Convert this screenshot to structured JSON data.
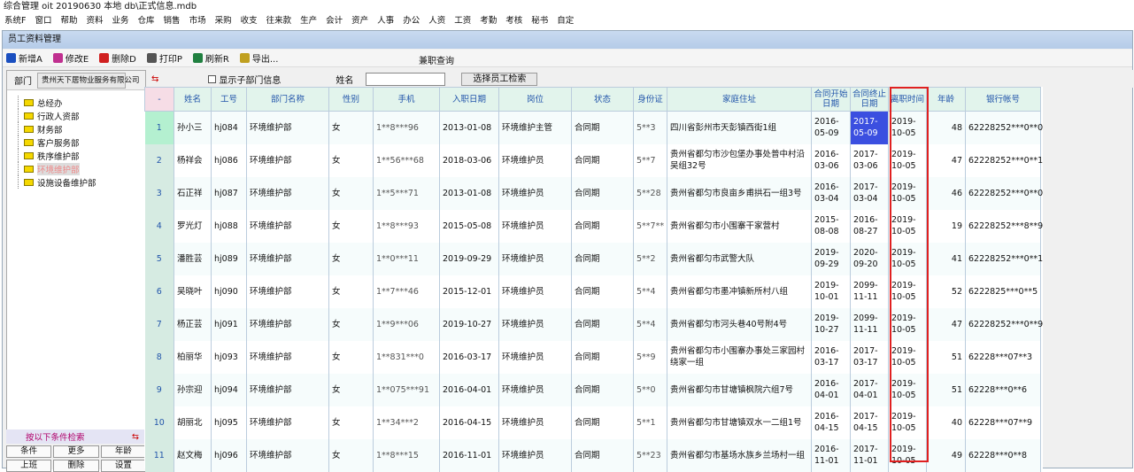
{
  "app": {
    "title": "综合管理 oit 20190630   本地 db\\正式信息.mdb",
    "menu": [
      "系统F",
      "窗口",
      "帮助",
      "资料",
      "业务",
      "仓库",
      "销售",
      "市场",
      "采购",
      "收支",
      "往来款",
      "生产",
      "会计",
      "资产",
      "人事",
      "办公",
      "人资",
      "工资",
      "考勤",
      "考核",
      "秘书",
      "自定"
    ]
  },
  "window": {
    "title": "员工资料管理",
    "toolbar": [
      {
        "label": "新增A",
        "icon": "add-icon",
        "color": "#1a4fc0"
      },
      {
        "label": "修改E",
        "icon": "edit-icon",
        "color": "#c03090"
      },
      {
        "label": "删除D",
        "icon": "delete-icon",
        "color": "#d02020"
      },
      {
        "label": "打印P",
        "icon": "print-icon",
        "color": "#555"
      },
      {
        "label": "刷新R",
        "icon": "refresh-icon",
        "color": "#208040"
      },
      {
        "label": "导出...",
        "icon": "export-icon",
        "color": "#c0a020"
      }
    ],
    "extra": "兼职查询"
  },
  "left": {
    "dept_label": "部门",
    "dept_value": "贵州天下居物业服务有限公司",
    "tree": [
      "总经办",
      "行政人资部",
      "财务部",
      "客户服务部",
      "秩序维护部",
      "环境维护部",
      "设施设备维护部"
    ],
    "selected": 5,
    "search_title": "按以下条件检索",
    "buttons": [
      "条件",
      "更多",
      "年龄",
      "上班",
      "删除",
      "设置"
    ]
  },
  "filter": {
    "checkbox": "显示子部门信息",
    "name_label": "姓名",
    "name_value": "",
    "search_btn": "选择员工检索"
  },
  "grid": {
    "headers": [
      "-",
      "姓名",
      "工号",
      "部门名称",
      "性别",
      "手机",
      "入职日期",
      "岗位",
      "状态",
      "身份证",
      "家庭住址",
      "合同开始日期",
      "合同终止日期",
      "离职时间",
      "年龄",
      "银行帐号"
    ],
    "rows": [
      [
        "1",
        "孙小三",
        "hj084",
        "环境维护部",
        "女",
        "1**8***96",
        "2013-01-08",
        "环境维护主管",
        "合同期",
        "5**3",
        "四川省彭州市天彭镇西街1组",
        "2016-05-09",
        "2017-05-09",
        "2019-10-05",
        "48",
        "62228252***0**0"
      ],
      [
        "2",
        "杨祥会",
        "hj086",
        "环境维护部",
        "女",
        "1**56***68",
        "2018-03-06",
        "环境维护员",
        "合同期",
        "5**7",
        "贵州省都匀市沙包堡办事处普中村沿吴组32号",
        "2016-03-06",
        "2017-03-06",
        "2019-10-05",
        "47",
        "62228252***0**1"
      ],
      [
        "3",
        "石正祥",
        "hj087",
        "环境维护部",
        "女",
        "1**5***71",
        "2013-01-08",
        "环境维护员",
        "合同期",
        "5**28",
        "贵州省都匀市良亩乡甫拱石一组3号",
        "2016-03-04",
        "2017-03-04",
        "2019-10-05",
        "46",
        "62228252***0**0"
      ],
      [
        "4",
        "罗光灯",
        "hj088",
        "环境维护部",
        "女",
        "1**8***93",
        "2015-05-08",
        "环境维护员",
        "合同期",
        "5**7**",
        "贵州省都匀市小围寨干家营村",
        "2015-08-08",
        "2016-08-27",
        "2019-10-05",
        "19",
        "62228252***8**9"
      ],
      [
        "5",
        "潘胜芸",
        "hj089",
        "环境维护部",
        "女",
        "1**0***11",
        "2019-09-29",
        "环境维护员",
        "合同期",
        "5**2",
        "贵州省都匀市武警大队",
        "2019-09-29",
        "2020-09-20",
        "2019-10-05",
        "41",
        "62228252***0**1"
      ],
      [
        "6",
        "吴晓叶",
        "hj090",
        "环境维护部",
        "女",
        "1**7***46",
        "2015-12-01",
        "环境维护员",
        "合同期",
        "5**4",
        "贵州省都匀市墨冲镇新所村八组",
        "2019-10-01",
        "2099-11-11",
        "2019-10-05",
        "52",
        "6222825***0**5"
      ],
      [
        "7",
        "杨正芸",
        "hj091",
        "环境维护部",
        "女",
        "1**9***06",
        "2019-10-27",
        "环境维护员",
        "合同期",
        "5**4",
        "贵州省都匀市河头巷40号附4号",
        "2019-10-27",
        "2099-11-11",
        "2019-10-05",
        "47",
        "62228252***0**9"
      ],
      [
        "8",
        "柏丽华",
        "hj093",
        "环境维护部",
        "女",
        "1**831***0",
        "2016-03-17",
        "环境维护员",
        "合同期",
        "5**9",
        "贵州省都匀市小围寨办事处三家园村绕家一组",
        "2016-03-17",
        "2017-03-17",
        "2019-10-05",
        "51",
        "62228***07**3"
      ],
      [
        "9",
        "孙宗迎",
        "hj094",
        "环境维护部",
        "女",
        "1**075***91",
        "2016-04-01",
        "环境维护员",
        "合同期",
        "5**0",
        "贵州省都匀市甘塘镇枫院六组7号",
        "2016-04-01",
        "2017-04-01",
        "2019-10-05",
        "51",
        "62228***0**6"
      ],
      [
        "10",
        "胡丽北",
        "hj095",
        "环境维护部",
        "女",
        "1**34***2",
        "2016-04-15",
        "环境维护员",
        "合同期",
        "5**1",
        "贵州省都匀市甘塘镇双水一二组1号",
        "2016-04-15",
        "2017-04-15",
        "2019-10-05",
        "40",
        "62228***07**9"
      ],
      [
        "11",
        "赵文梅",
        "hj096",
        "环境维护部",
        "女",
        "1**8***15",
        "2016-11-01",
        "环境维护员",
        "合同期",
        "5**23",
        "贵州省都匀市基场水族乡兰场村一组",
        "2016-11-01",
        "2017-11-01",
        "2019-10-05",
        "49",
        "62228***0**8"
      ]
    ],
    "selected_row": 0,
    "highlight_col": 12,
    "boxed_column": "离职时间",
    "highlight_color": "#3b4fe0",
    "box_color": "#e02020",
    "selected_row_color": "#b4f0d0"
  }
}
